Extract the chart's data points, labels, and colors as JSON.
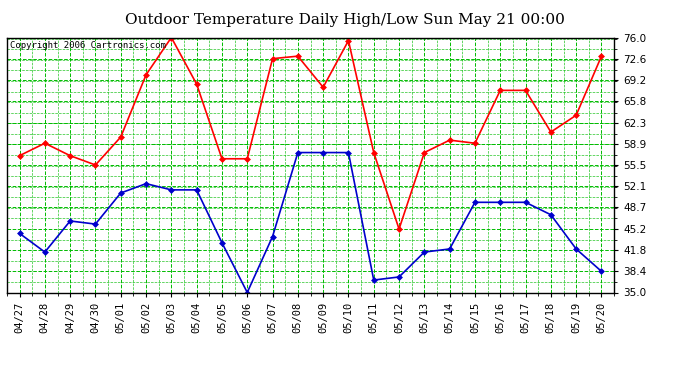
{
  "title": "Outdoor Temperature Daily High/Low Sun May 21 00:00",
  "copyright": "Copyright 2006 Cartronics.com",
  "x_labels": [
    "04/27",
    "04/28",
    "04/29",
    "04/30",
    "05/01",
    "05/02",
    "05/03",
    "05/04",
    "05/05",
    "05/06",
    "05/07",
    "05/08",
    "05/09",
    "05/10",
    "05/11",
    "05/12",
    "05/13",
    "05/14",
    "05/15",
    "05/16",
    "05/17",
    "05/18",
    "05/19",
    "05/20"
  ],
  "high_values": [
    57.0,
    59.0,
    57.0,
    55.5,
    60.0,
    70.0,
    76.0,
    68.5,
    56.5,
    56.5,
    72.6,
    73.0,
    68.0,
    75.5,
    57.5,
    45.2,
    57.5,
    59.5,
    59.0,
    67.5,
    67.5,
    60.8,
    63.5,
    73.0
  ],
  "low_values": [
    44.5,
    41.5,
    46.5,
    46.0,
    51.0,
    52.5,
    51.5,
    51.5,
    43.0,
    35.0,
    44.0,
    57.5,
    57.5,
    57.5,
    37.0,
    37.5,
    41.5,
    42.0,
    49.5,
    49.5,
    49.5,
    47.5,
    42.0,
    38.4
  ],
  "high_color": "#ff0000",
  "low_color": "#0000cc",
  "marker": "D",
  "marker_size": 3,
  "bg_color": "#ffffff",
  "plot_bg_color": "#ffffff",
  "grid_color": "#00bb00",
  "ylim": [
    35.0,
    76.0
  ],
  "yticks": [
    35.0,
    38.4,
    41.8,
    45.2,
    48.7,
    52.1,
    55.5,
    58.9,
    62.3,
    65.8,
    69.2,
    72.6,
    76.0
  ],
  "title_fontsize": 11,
  "copyright_fontsize": 6.5,
  "tick_fontsize": 7.5,
  "line_width": 1.2
}
